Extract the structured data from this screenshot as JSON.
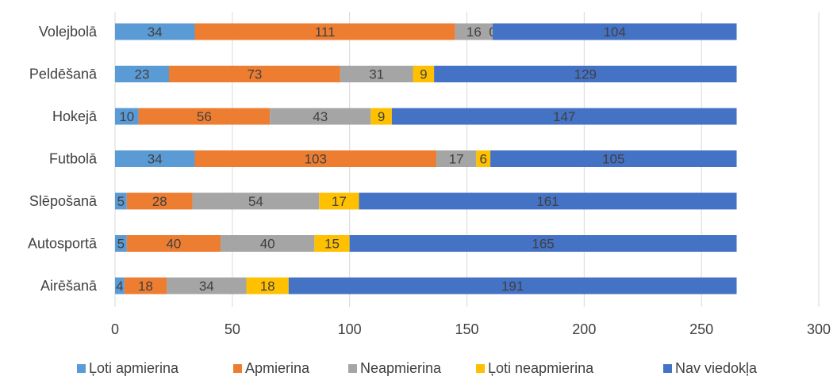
{
  "chart_data": {
    "type": "bar",
    "orientation": "horizontal",
    "stacked": true,
    "title": "",
    "xlabel": "",
    "ylabel": "",
    "xlim": [
      0,
      300
    ],
    "x_ticks": [
      0,
      50,
      100,
      150,
      200,
      250,
      300
    ],
    "grid": true,
    "legend_position": "bottom",
    "categories": [
      "Volejbolā",
      "Peldēšanā",
      "Hokejā",
      "Futbolā",
      "Slēpošanā",
      "Autosportā",
      "Airēšanā"
    ],
    "series": [
      {
        "name": "Ļoti apmierina",
        "color": "#5B9BD5",
        "values": [
          34,
          23,
          10,
          34,
          5,
          5,
          4
        ]
      },
      {
        "name": "Apmierina",
        "color": "#ED7D31",
        "values": [
          111,
          73,
          56,
          103,
          28,
          40,
          18
        ]
      },
      {
        "name": "Neapmierina",
        "color": "#A5A5A5",
        "values": [
          16,
          31,
          43,
          17,
          54,
          40,
          34
        ]
      },
      {
        "name": "Ļoti neapmierina",
        "color": "#FFC000",
        "values": [
          0,
          9,
          9,
          6,
          17,
          15,
          18
        ]
      },
      {
        "name": "Nav viedokļa",
        "color": "#4472C4",
        "values": [
          104,
          129,
          147,
          105,
          161,
          165,
          191
        ]
      }
    ],
    "label_color": "#404040"
  }
}
